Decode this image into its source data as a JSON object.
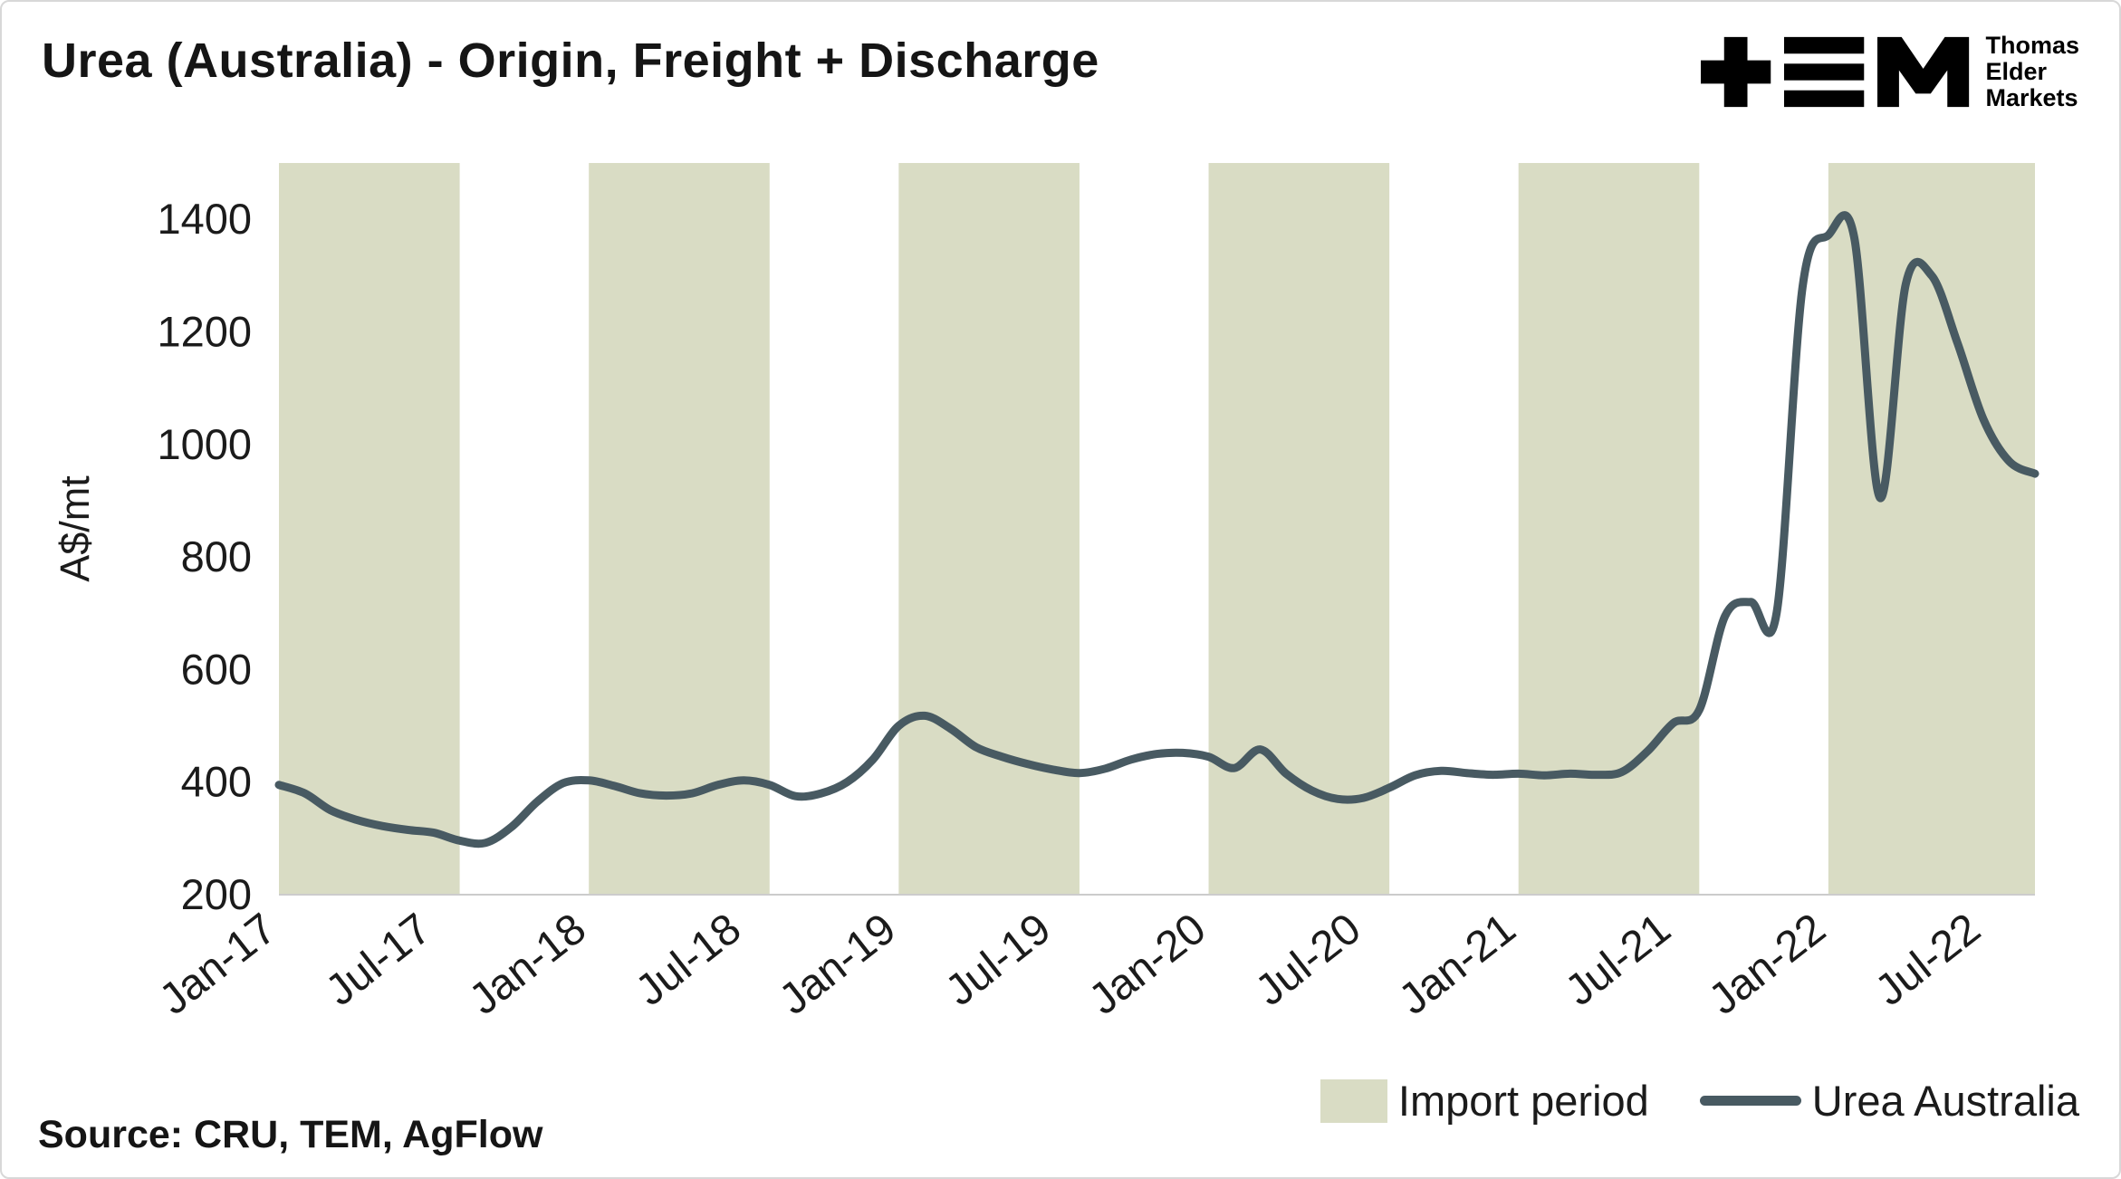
{
  "header": {
    "title": "Urea (Australia) - Origin, Freight + Discharge",
    "logo": {
      "brand_lines": [
        "Thomas",
        "Elder",
        "Markets"
      ]
    }
  },
  "chart_data": {
    "type": "line",
    "title": "Urea (Australia) - Origin, Freight + Discharge",
    "ylabel": "A$/mt",
    "ylim": [
      200,
      1500
    ],
    "yticks": [
      200,
      400,
      600,
      800,
      1000,
      1200,
      1400
    ],
    "x_start": "Jan-2017",
    "x_frequency": "monthly",
    "grid": "off",
    "legend_position": "bottom-right",
    "xticks": [
      {
        "m": 0,
        "label": "Jan-17"
      },
      {
        "m": 6,
        "label": "Jul-17"
      },
      {
        "m": 12,
        "label": "Jan-18"
      },
      {
        "m": 18,
        "label": "Jul-18"
      },
      {
        "m": 24,
        "label": "Jan-19"
      },
      {
        "m": 30,
        "label": "Jul-19"
      },
      {
        "m": 36,
        "label": "Jan-20"
      },
      {
        "m": 42,
        "label": "Jul-20"
      },
      {
        "m": 48,
        "label": "Jan-21"
      },
      {
        "m": 54,
        "label": "Jul-21"
      },
      {
        "m": 60,
        "label": "Jan-22"
      },
      {
        "m": 66,
        "label": "Jul-22"
      }
    ],
    "bands": {
      "label": "Import period",
      "color": "#d9dcc4",
      "month_ranges": [
        [
          0,
          7
        ],
        [
          12,
          19
        ],
        [
          24,
          31
        ],
        [
          36,
          43
        ],
        [
          48,
          55
        ],
        [
          60,
          68
        ]
      ]
    },
    "series": [
      {
        "name": "Urea Australia",
        "color": "#485a62",
        "values": [
          395,
          380,
          350,
          333,
          322,
          315,
          310,
          296,
          292,
          320,
          365,
          398,
          403,
          393,
          380,
          376,
          380,
          395,
          403,
          395,
          375,
          380,
          400,
          440,
          500,
          518,
          495,
          462,
          445,
          432,
          422,
          416,
          424,
          440,
          450,
          452,
          445,
          425,
          458,
          415,
          385,
          370,
          372,
          390,
          412,
          420,
          416,
          413,
          415,
          412,
          415,
          413,
          418,
          455,
          505,
          528,
          695,
          720,
          702,
          1280,
          1372,
          1368,
          905,
          1285,
          1300,
          1180,
          1045,
          970,
          948
        ]
      }
    ]
  },
  "legend": {
    "items": [
      {
        "label": "Import period",
        "swatch": "band"
      },
      {
        "label": "Urea Australia",
        "swatch": "line"
      }
    ]
  },
  "footer": {
    "source_text": "Source: CRU, TEM, AgFlow"
  }
}
